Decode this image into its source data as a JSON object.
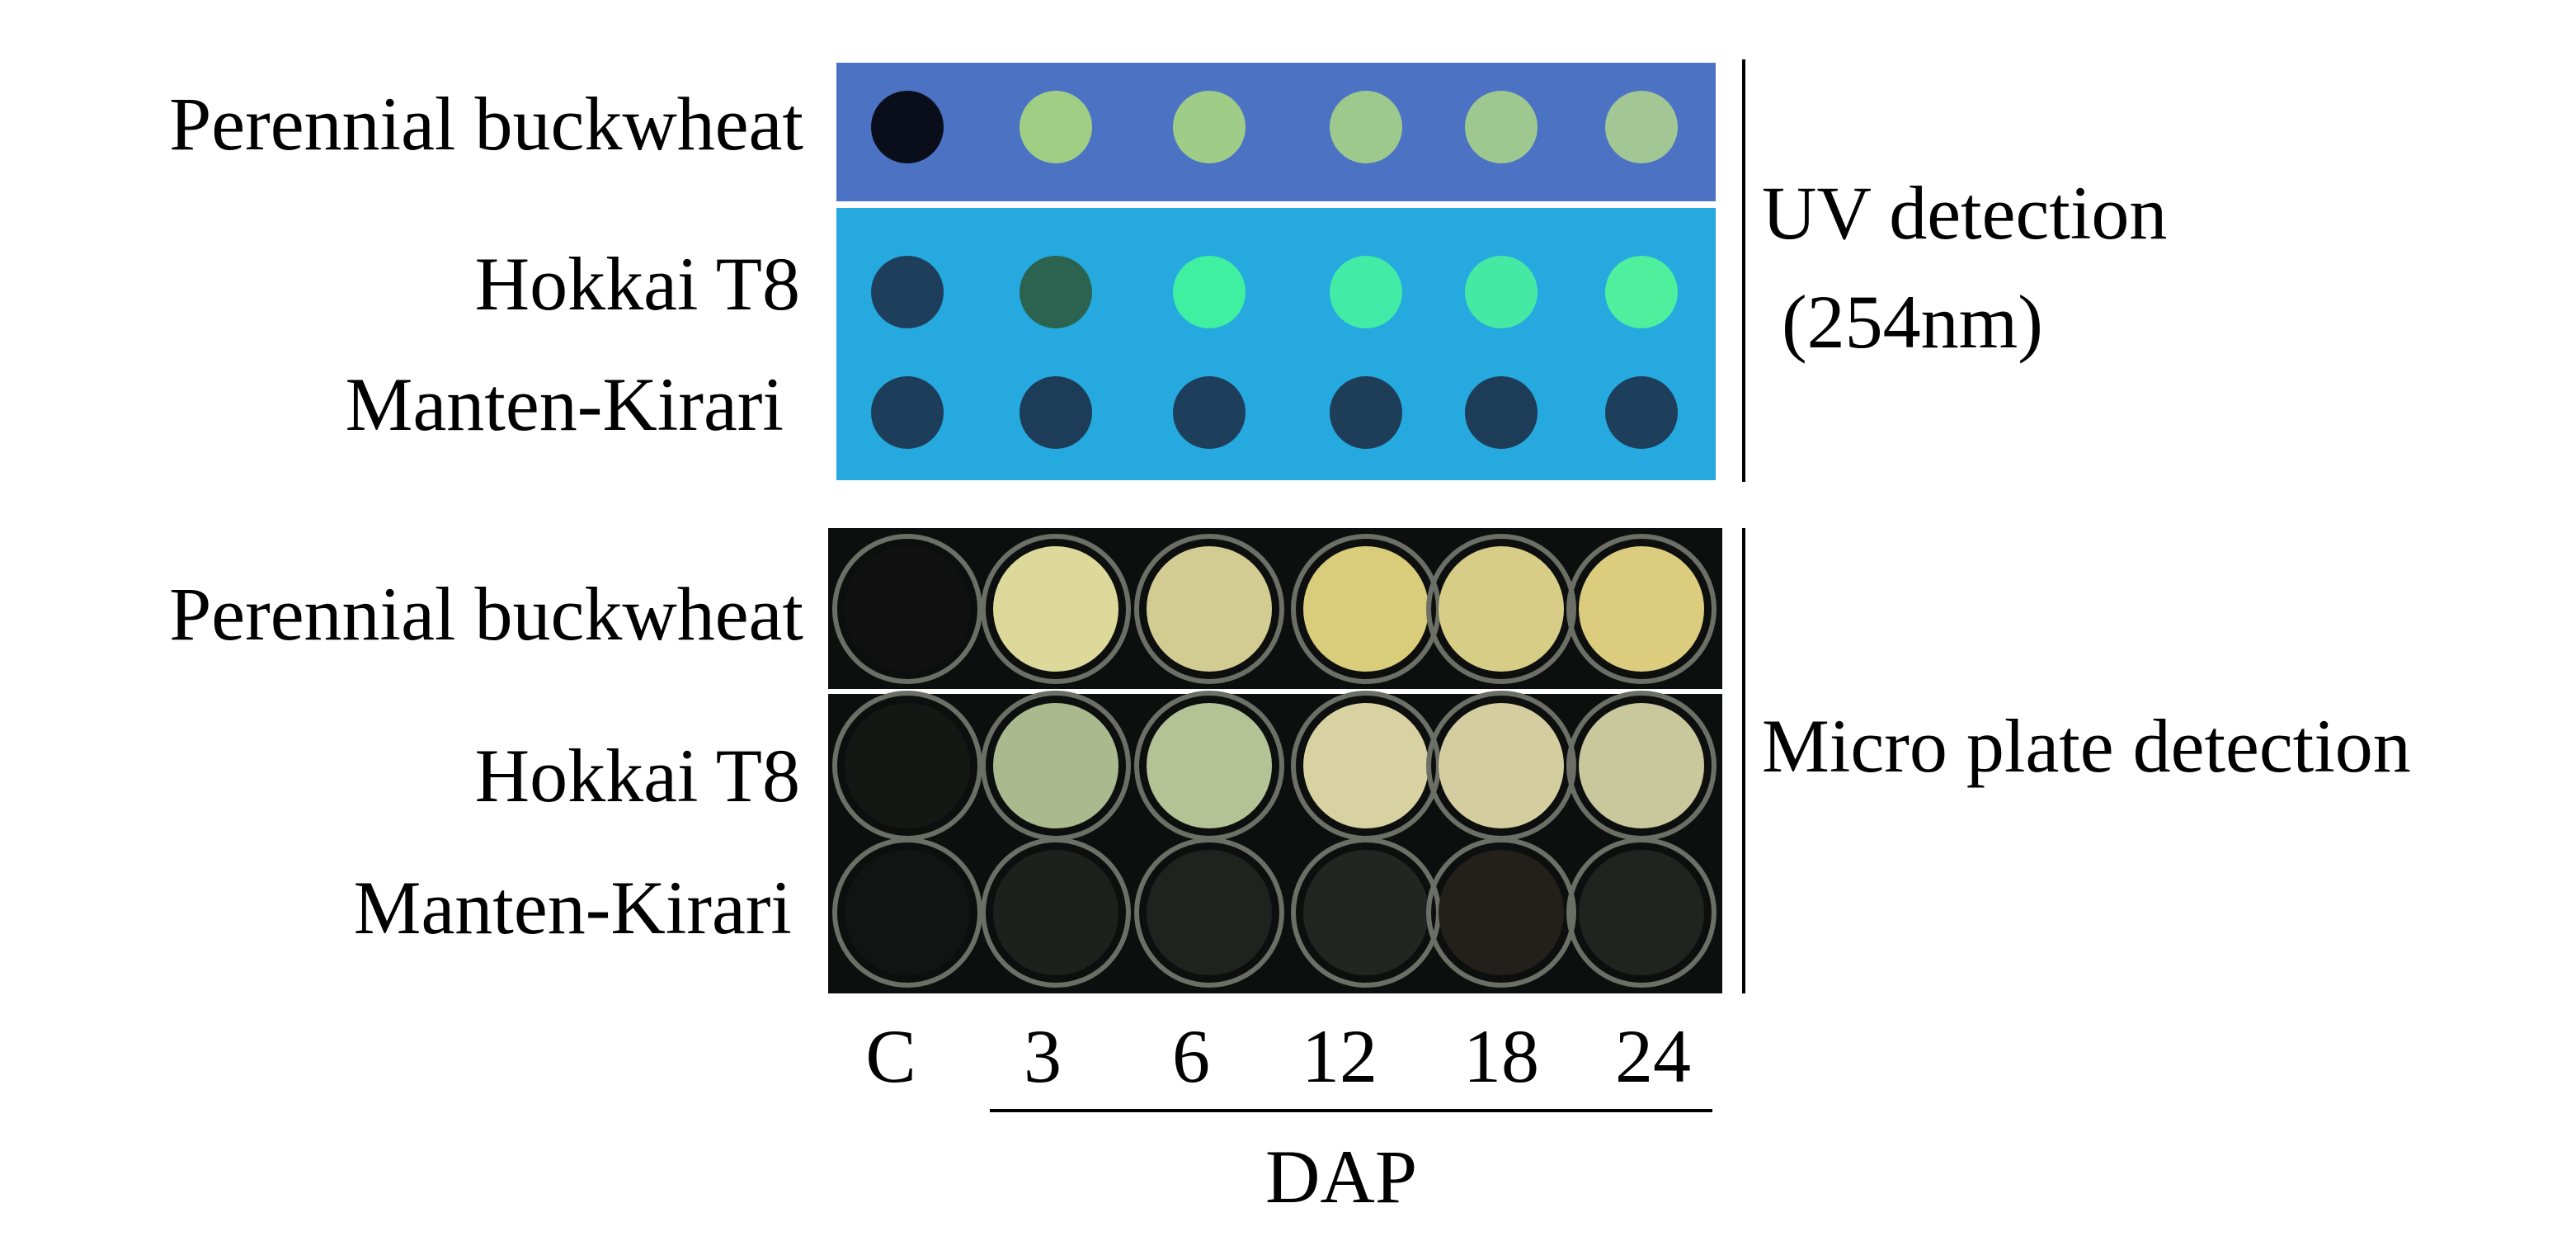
{
  "uv_panel": {
    "label_lines": [
      "UV detection",
      "(254nm)"
    ],
    "rows": [
      "Perennial buckwheat",
      "Hokkai T8",
      "Manten-Kirari"
    ]
  },
  "plate_panel": {
    "label": "Micro plate detection",
    "rows": [
      "Perennial buckwheat",
      "Hokkai T8",
      "Manten-Kirari"
    ]
  },
  "columns": [
    "C",
    "3",
    "6",
    "12",
    "18",
    "24"
  ],
  "axis_label": "DAP"
}
